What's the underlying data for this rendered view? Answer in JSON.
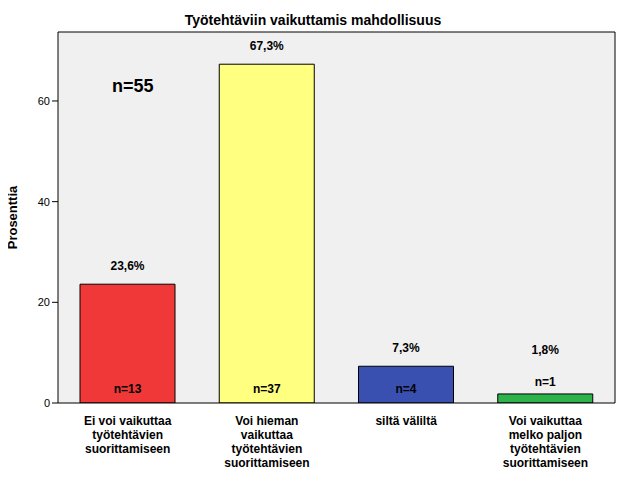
{
  "chart_data": {
    "type": "bar",
    "title": "Työtehtäviin vaikuttamis mahdollisuus",
    "y_label": "Prosenttia",
    "annotation": "n=55",
    "categories": [
      "Ei voi vaikuttaa\ntyötehtävien\nsuorittamiseen",
      "Voi hieman\nvaikuttaa\ntyötehtävien\nsuorittamiseen",
      "siltä väliltä",
      "Voi vaikuttaa\nmelko paljon\ntyötehtävien\nsuorittamiseen"
    ],
    "values": [
      23.6,
      67.3,
      7.3,
      1.8
    ],
    "value_labels": [
      "23,6%",
      "67,3%",
      "7,3%",
      "1,8%"
    ],
    "count_labels": [
      "n=13",
      "n=37",
      "n=4",
      "n=1"
    ],
    "colors": [
      "#f03838",
      "#ffff80",
      "#3a50b0",
      "#2db34a"
    ],
    "ylim": [
      0,
      73.7
    ],
    "yticks": [
      0,
      20,
      40,
      60
    ],
    "data_labels": true,
    "grid": false
  }
}
